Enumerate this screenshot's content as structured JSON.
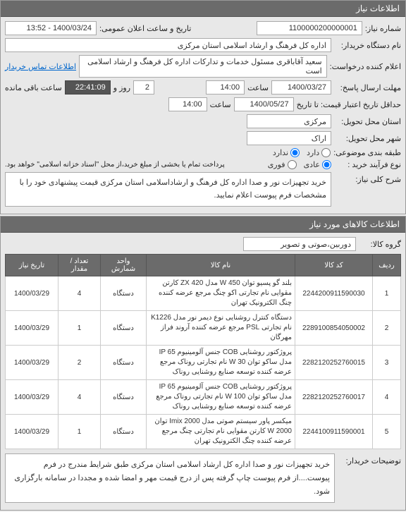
{
  "panels": {
    "need_info": "اطلاعات نیاز",
    "items_info": "اطلاعات کالاهای مورد نیاز"
  },
  "labels": {
    "need_no": "شماره نیاز:",
    "buyer_org": "نام دستگاه خریدار:",
    "requester": "اعلام کننده درخواست:",
    "deadline": "مهلت ارسال پاسخ:",
    "to_date": "تا تاریخ:",
    "credit_min": "حداقل تاریخ اعتبار قیمت: تا تاریخ",
    "delivery_prov": "استان محل تحویل:",
    "delivery_city": "شهر محل تحویل:",
    "budget_row": "طبقه بندی موضوعی:",
    "buy_process": "نوع فرآیند خرید :",
    "hour": "ساعت",
    "and": "و",
    "day": "روز و",
    "remain": "ساعت باقی مانده",
    "public_date": "تاریخ و ساعت اعلان عمومی:",
    "main_desc": "شرح کلی نیاز:",
    "goods_group": "گروه کالا:",
    "buyer_desc": "توضیحات خریدار:",
    "payment_note": "پرداخت تمام یا بخشی از مبلغ خرید،از محل \"اسناد خزانه اسلامی\" خواهد بود."
  },
  "values": {
    "need_no": "1100000200000001",
    "public_date": "1400/03/24 - 13:52",
    "buyer_org": "اداره کل فرهنگ و ارشاد اسلامی استان مرکزی",
    "requester": "سعید آقاباقری مسئول خدمات و تدارکات اداره کل فرهنگ و ارشاد اسلامی است",
    "requester_link": "اطلاعات تماس خریدار",
    "deadline_date": "1400/03/27",
    "deadline_hour": "14:00",
    "countdown_days": "2",
    "countdown_time": "22:41:09",
    "credit_date": "1400/05/27",
    "credit_hour": "14:00",
    "delivery_prov": "مرکزی",
    "delivery_city": "اراک",
    "main_desc": "خرید تجهیزات نور و صدا اداره کل فرهنگ و ارشاداسلامی استان مرکزی  قیمت پیشنهادی خود را با مشخصات فرم پیوست اعلام نمایید.",
    "goods_group": "دوربین،صوتی و تصویر",
    "bottom_desc": "خرید تجهیزات نور و صدا اداره کل  ارشاد اسلامی استان مرکزی طبق شرایط مندرج در فرم پیوست....از فرم پیوست چاپ گرفته پس از درج قیمت مهر و امضا شده و مجددا در سامانه بارگزاری شود."
  },
  "radios": {
    "budget": [
      {
        "label": "دارد",
        "checked": false
      },
      {
        "label": "ندارد",
        "checked": true
      }
    ],
    "process": [
      {
        "label": "عادی",
        "checked": true
      },
      {
        "label": "فوری",
        "checked": false
      }
    ]
  },
  "table": {
    "headers": [
      "ردیف",
      "کد کالا",
      "نام کالا",
      "واحد شمارش",
      "تعداد / مقدار",
      "تاریخ نیاز"
    ],
    "rows": [
      {
        "idx": "1",
        "code": "2244200911590030",
        "name": "بلند گو پسیو توان W 450 مدل ZX 420 کارتن مقوایی نام تجارتی اکو چنگ مرجع عرضه کننده چنگ الکترونیک تهران",
        "unit": "دستگاه",
        "qty": "4",
        "date": "1400/03/29"
      },
      {
        "idx": "2",
        "code": "2289100854050002",
        "name": "دستگاه کنترل روشنایی نوع دیمر نور مدل K1226 نام تجارتی PSL مرجع عرضه کننده آروند فراز مهرگان",
        "unit": "دستگاه",
        "qty": "1",
        "date": "1400/03/29"
      },
      {
        "idx": "3",
        "code": "2282120252760015",
        "name": "پروژکتور روشنایی COB جنس آلومینیوم IP 65 مدل ساکو توان W 30 نام تجارتی روناک مرجع عرضه کننده توسعه صنایع روشنایی روناک",
        "unit": "دستگاه",
        "qty": "2",
        "date": "1400/03/29"
      },
      {
        "idx": "4",
        "code": "2282120252760017",
        "name": "پروژکتور روشنایی COB جنس آلومینیوم IP 65 مدل ساکو توان W 100 نام تجارتی روناک مرجع عرضه کننده توسعه صنایع روشنایی روناک",
        "unit": "دستگاه",
        "qty": "4",
        "date": "1400/03/29"
      },
      {
        "idx": "5",
        "code": "2244100911590001",
        "name": "میکسر پاور سیستم صوتی مدل Imix 2000 توان W 2000 کارتن مقوایی نام تجارتی چنگ مرجع عرضه کننده چنگ الکترونیک تهران",
        "unit": "دستگاه",
        "qty": "1",
        "date": "1400/03/29"
      }
    ]
  }
}
